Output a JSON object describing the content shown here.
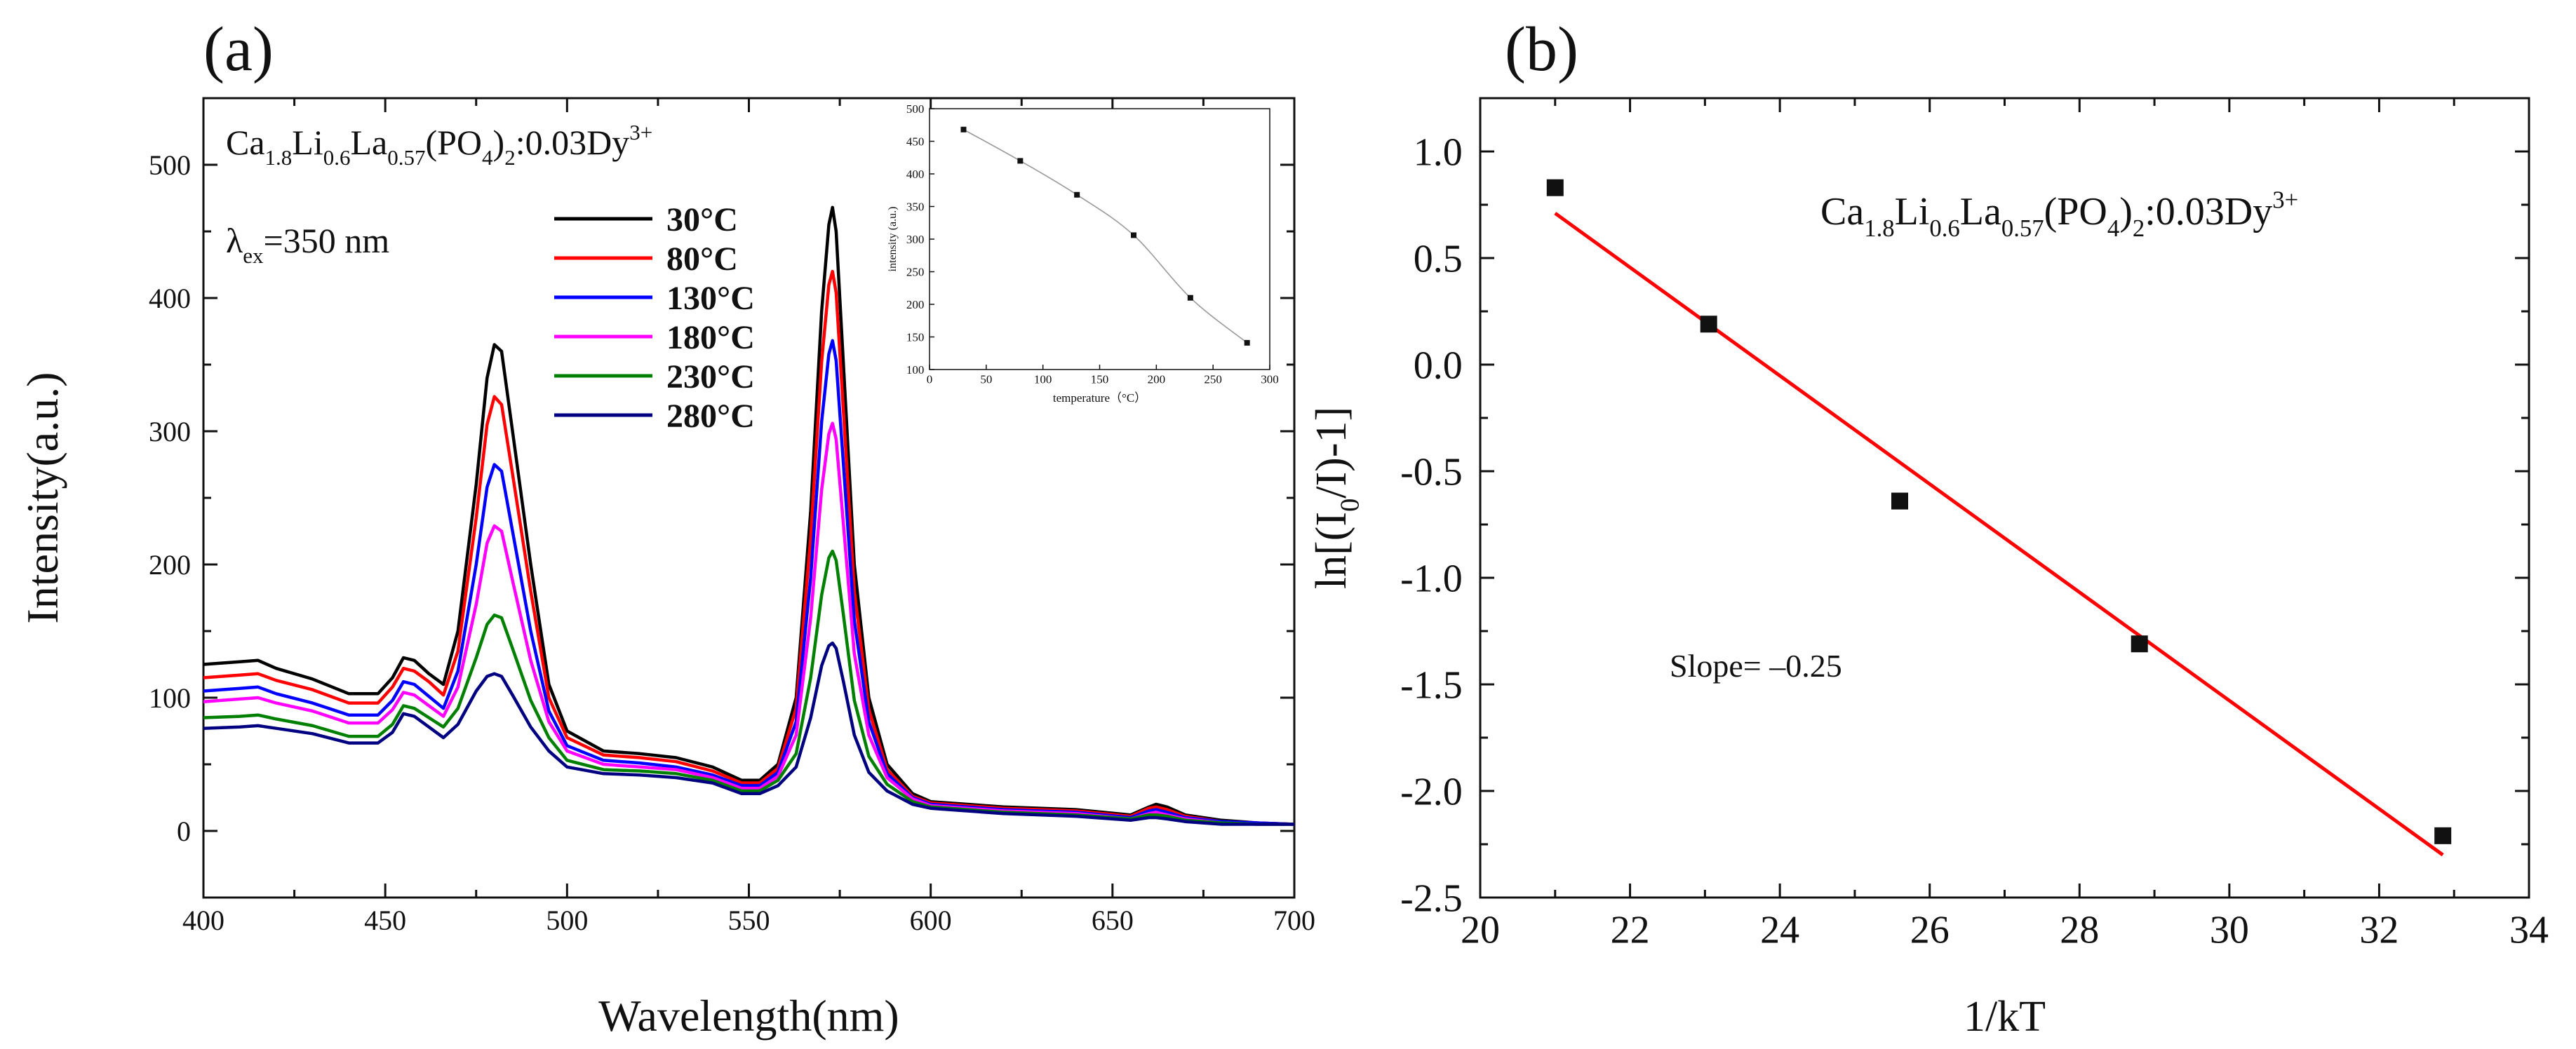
{
  "panel_labels": {
    "a": "(a)",
    "b": "(b)"
  },
  "chart_data": [
    {
      "id": "a",
      "type": "line",
      "xlabel": "Wavelength(nm)",
      "ylabel": "Intensity(a.u.)",
      "xlim": [
        400,
        700
      ],
      "ylim": [
        -50,
        550
      ],
      "xticks": [
        400,
        450,
        500,
        550,
        600,
        650,
        700
      ],
      "yticks": [
        0,
        100,
        200,
        300,
        400,
        500
      ],
      "annotation_formula": {
        "parts": [
          {
            "t": "Ca",
            "s": ""
          },
          {
            "t": "1.8",
            "s": "sub"
          },
          {
            "t": "Li",
            "s": ""
          },
          {
            "t": "0.6",
            "s": "sub"
          },
          {
            "t": "La",
            "s": ""
          },
          {
            "t": "0.57",
            "s": "sub"
          },
          {
            "t": "(PO",
            "s": ""
          },
          {
            "t": "4",
            "s": "sub"
          },
          {
            "t": ")",
            "s": ""
          },
          {
            "t": "2",
            "s": "sub"
          },
          {
            "t": ":0.03Dy",
            "s": ""
          },
          {
            "t": "3+",
            "s": "sup"
          }
        ]
      },
      "annotation_excitation": {
        "parts": [
          {
            "t": "λ",
            "s": ""
          },
          {
            "t": "ex",
            "s": "sub"
          },
          {
            "t": "=350 nm",
            "s": ""
          }
        ]
      },
      "x": [
        400,
        410,
        415,
        420,
        430,
        440,
        448,
        452,
        455,
        458,
        462,
        466,
        470,
        475,
        478,
        480,
        482,
        485,
        490,
        495,
        500,
        510,
        520,
        530,
        540,
        548,
        553,
        558,
        563,
        567,
        570,
        572,
        573,
        574,
        576,
        579,
        583,
        588,
        595,
        600,
        620,
        640,
        655,
        660,
        662,
        665,
        670,
        680,
        690,
        700
      ],
      "series": [
        {
          "name": "30°C",
          "color": "#000000",
          "values": [
            125,
            127,
            128,
            122,
            114,
            103,
            103,
            115,
            130,
            128,
            118,
            110,
            150,
            260,
            340,
            365,
            360,
            300,
            200,
            110,
            75,
            60,
            58,
            55,
            48,
            38,
            38,
            50,
            100,
            240,
            390,
            455,
            468,
            450,
            350,
            200,
            100,
            50,
            28,
            22,
            18,
            16,
            12,
            18,
            20,
            18,
            12,
            8,
            6,
            5
          ]
        },
        {
          "name": "80°C",
          "color": "#ff0000",
          "values": [
            115,
            117,
            118,
            113,
            106,
            96,
            96,
            108,
            122,
            120,
            112,
            102,
            135,
            235,
            305,
            326,
            320,
            268,
            180,
            100,
            70,
            57,
            55,
            52,
            45,
            36,
            36,
            47,
            92,
            220,
            352,
            410,
            420,
            404,
            315,
            180,
            91,
            46,
            26,
            21,
            17,
            15,
            11,
            17,
            18,
            16,
            11,
            7,
            6,
            5
          ]
        },
        {
          "name": "130°C",
          "color": "#0000ff",
          "values": [
            105,
            107,
            108,
            103,
            96,
            87,
            87,
            98,
            112,
            110,
            101,
            92,
            120,
            200,
            258,
            275,
            270,
            225,
            150,
            90,
            64,
            53,
            51,
            48,
            42,
            34,
            34,
            44,
            82,
            190,
            307,
            358,
            368,
            353,
            275,
            158,
            82,
            43,
            25,
            20,
            16,
            14,
            10,
            15,
            16,
            14,
            10,
            7,
            6,
            5
          ]
        },
        {
          "name": "180°C",
          "color": "#ff00ff",
          "values": [
            97,
            99,
            100,
            96,
            90,
            81,
            81,
            91,
            104,
            102,
            94,
            86,
            108,
            170,
            216,
            229,
            225,
            188,
            128,
            82,
            60,
            50,
            48,
            46,
            40,
            32,
            32,
            41,
            72,
            160,
            256,
            298,
            306,
            294,
            230,
            133,
            72,
            40,
            24,
            19,
            15,
            13,
            9,
            13,
            14,
            12,
            9,
            6,
            5,
            5
          ]
        },
        {
          "name": "230°C",
          "color": "#008000",
          "values": [
            85,
            86,
            87,
            84,
            79,
            71,
            71,
            80,
            94,
            92,
            85,
            78,
            92,
            130,
            155,
            162,
            160,
            137,
            98,
            70,
            53,
            46,
            45,
            43,
            38,
            30,
            30,
            38,
            58,
            115,
            177,
            205,
            210,
            203,
            162,
            98,
            56,
            35,
            22,
            18,
            14,
            12,
            9,
            12,
            12,
            11,
            8,
            6,
            5,
            5
          ]
        },
        {
          "name": "280°C",
          "color": "#000080",
          "values": [
            77,
            78,
            79,
            77,
            73,
            66,
            66,
            74,
            88,
            86,
            78,
            70,
            80,
            105,
            116,
            118,
            116,
            102,
            78,
            60,
            48,
            43,
            42,
            40,
            36,
            28,
            28,
            34,
            48,
            85,
            124,
            139,
            141,
            137,
            112,
            72,
            44,
            30,
            20,
            17,
            13,
            11,
            8,
            10,
            10,
            9,
            7,
            5,
            5,
            5
          ]
        }
      ],
      "inset": {
        "type": "line",
        "xlabel": "temperature（°C）",
        "ylabel": "intensity (a.u.)",
        "xlim": [
          0,
          300
        ],
        "ylim": [
          100,
          500
        ],
        "xticks": [
          0,
          50,
          100,
          150,
          200,
          250,
          300
        ],
        "yticks": [
          100,
          150,
          200,
          250,
          300,
          350,
          400,
          450,
          500
        ],
        "x": [
          30,
          80,
          130,
          180,
          230,
          280
        ],
        "y": [
          468,
          420,
          368,
          306,
          210,
          141
        ]
      }
    },
    {
      "id": "b",
      "type": "scatter",
      "xlabel": "1/kT",
      "ylabel": "ln[(I₀/I)-1]",
      "ylabel_parts": [
        {
          "t": "ln[(I",
          "s": ""
        },
        {
          "t": "0",
          "s": "sub"
        },
        {
          "t": "/I)-1]",
          "s": ""
        }
      ],
      "xlim": [
        20,
        34
      ],
      "ylim": [
        -2.5,
        1.25
      ],
      "xticks": [
        20,
        22,
        24,
        26,
        28,
        30,
        32,
        34
      ],
      "yticks": [
        -2.5,
        -2.0,
        -1.5,
        -1.0,
        -0.5,
        0.0,
        0.5,
        1.0
      ],
      "ytick_labels": [
        "-2.5",
        "-2.0",
        "-1.5",
        "-1.0",
        "-0.5",
        "0.0",
        "0.5",
        "1.0"
      ],
      "points": {
        "x": [
          21.0,
          23.05,
          25.6,
          28.8,
          32.85
        ],
        "y": [
          0.83,
          0.19,
          -0.64,
          -1.31,
          -2.21
        ]
      },
      "fit": {
        "x": [
          21.0,
          32.85
        ],
        "y": [
          0.71,
          -2.3
        ],
        "color": "#ff0000"
      },
      "annotation_formula": {
        "parts": [
          {
            "t": "Ca",
            "s": ""
          },
          {
            "t": "1.8",
            "s": "sub"
          },
          {
            "t": "Li",
            "s": ""
          },
          {
            "t": "0.6",
            "s": "sub"
          },
          {
            "t": "La",
            "s": ""
          },
          {
            "t": "0.57",
            "s": "sub"
          },
          {
            "t": "(PO",
            "s": ""
          },
          {
            "t": "4",
            "s": "sub"
          },
          {
            "t": ")",
            "s": ""
          },
          {
            "t": "2",
            "s": "sub"
          },
          {
            "t": ":0.03Dy",
            "s": ""
          },
          {
            "t": "3+",
            "s": "sup"
          }
        ]
      },
      "slope_text": "Slope= –0.25"
    }
  ]
}
